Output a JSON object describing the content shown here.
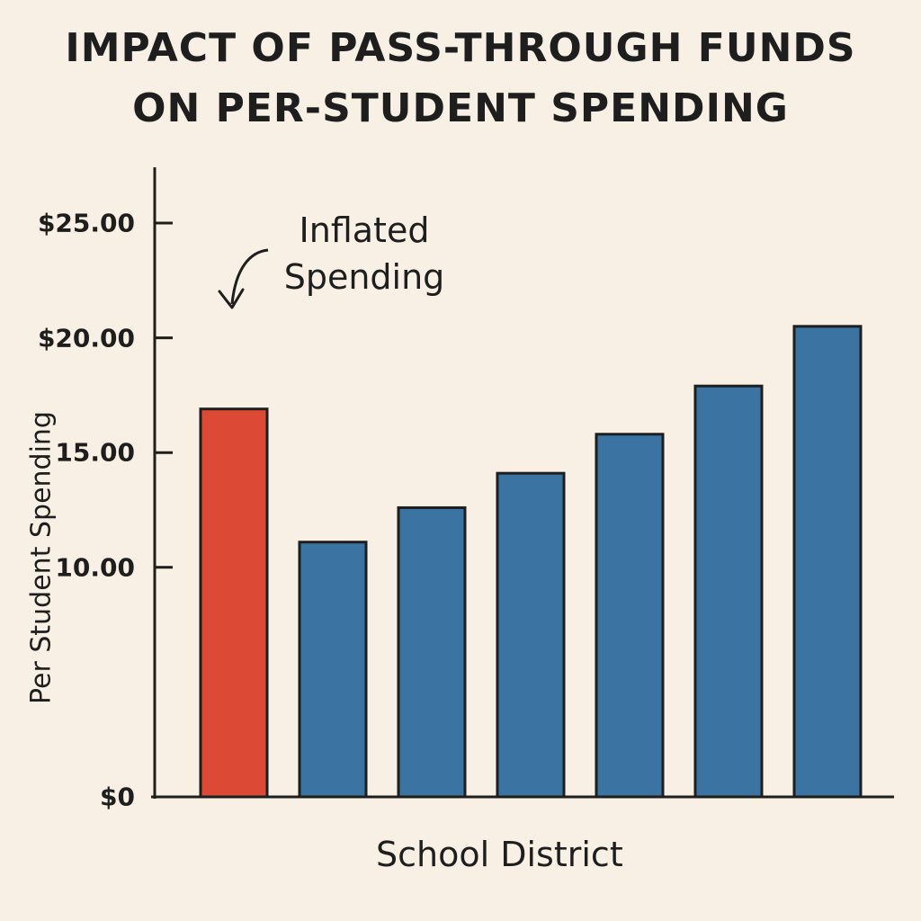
{
  "chart_data": {
    "type": "bar",
    "title_lines": [
      "IMPACT OF PASS-THROUGH FUNDS",
      "ON PER-STUDENT SPENDING"
    ],
    "xlabel": "School District",
    "ylabel": "Per Student Spending",
    "yticks": [
      {
        "value": 25,
        "label": "$25.00"
      },
      {
        "value": 20,
        "label": "$20.00"
      },
      {
        "value": 15,
        "label": "15.00"
      },
      {
        "value": 10,
        "label": "10.00"
      },
      {
        "value": 0,
        "label": "$0"
      }
    ],
    "ylim": [
      0,
      25
    ],
    "categories": [
      "",
      "",
      "",
      "",
      "",
      "",
      ""
    ],
    "values": [
      16.9,
      11.1,
      12.6,
      14.1,
      15.8,
      17.9,
      20.5
    ],
    "colors": [
      "#dc4a35",
      "#3b74a3",
      "#3b74a3",
      "#3b74a3",
      "#3b74a3",
      "#3b74a3",
      "#3b74a3"
    ],
    "highlight_color": "#dc4a35",
    "bar_color": "#3b74a3",
    "annotation": {
      "text_lines": [
        "Inflated",
        "Spending"
      ],
      "target_bar": 0
    }
  }
}
